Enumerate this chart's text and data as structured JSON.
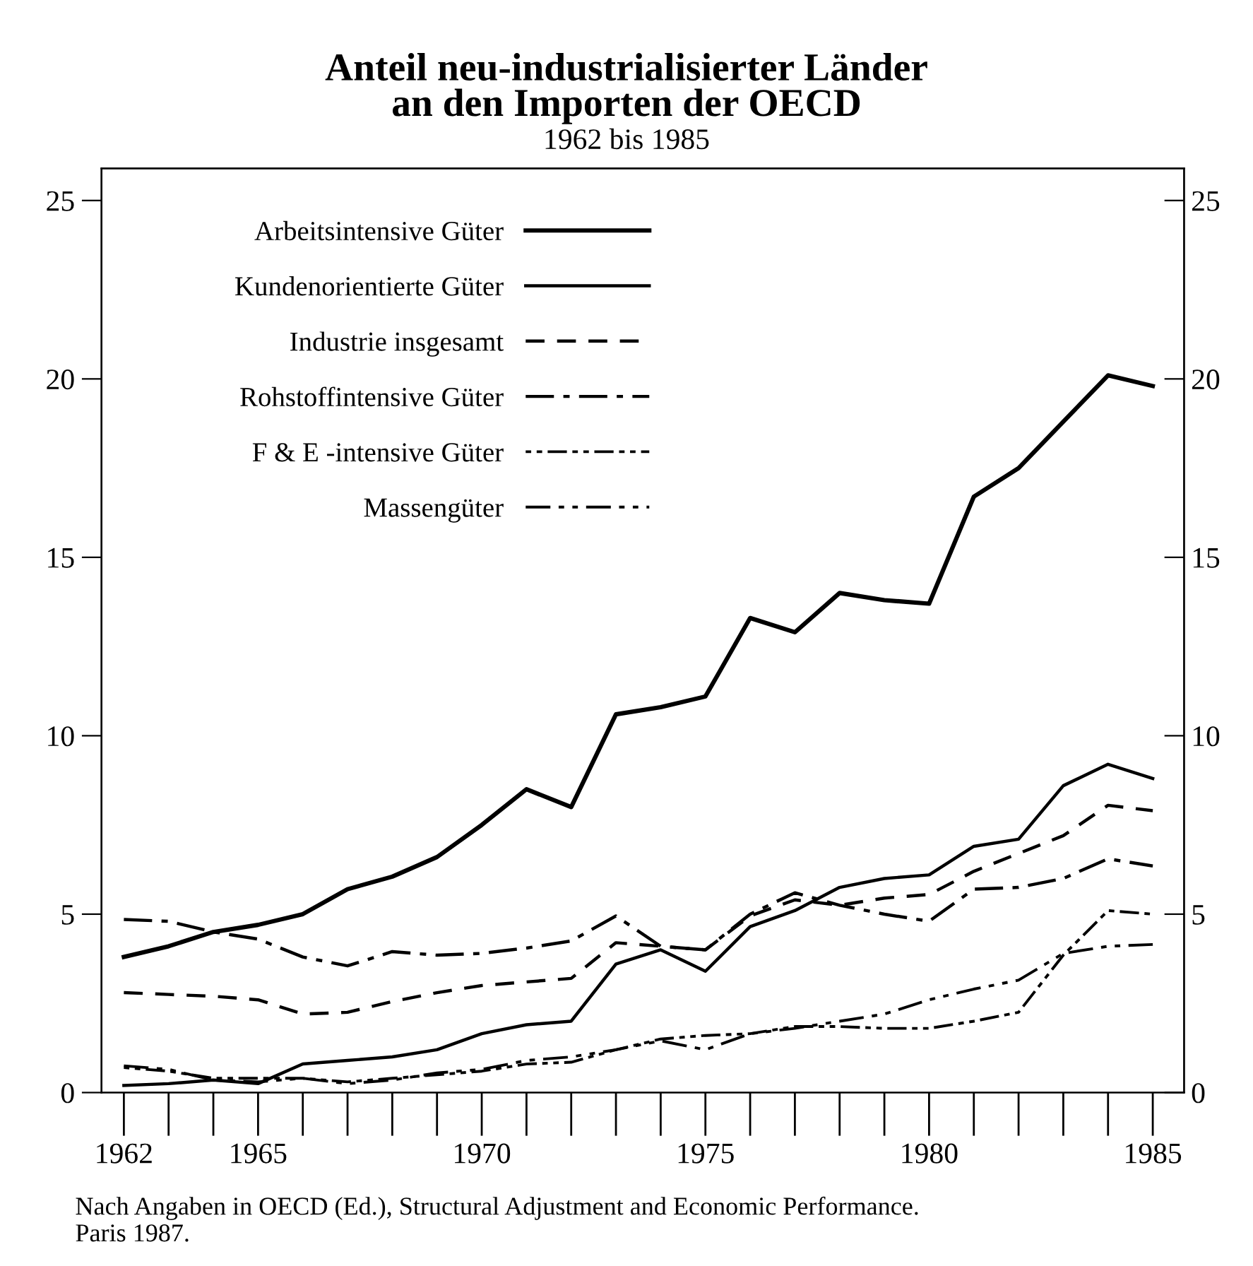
{
  "chart_data": {
    "type": "line",
    "title": "Anteil neu-industrialisierter Länder\nan den Importen der OECD",
    "subtitle": "1962 bis 1985",
    "annotations": [
      "Nach Angaben in OECD (Ed.), Structural Adjustment and Economic Performance.\nParis 1987."
    ],
    "x": [
      1962,
      1963,
      1964,
      1965,
      1966,
      1967,
      1968,
      1969,
      1970,
      1971,
      1972,
      1973,
      1974,
      1975,
      1976,
      1977,
      1978,
      1979,
      1980,
      1981,
      1982,
      1983,
      1984,
      1985
    ],
    "series": [
      {
        "name": "Arbeitsintensive Güter",
        "color": "#000000",
        "line_style": "solid",
        "values": [
          3.8,
          4.1,
          4.5,
          4.7,
          5.0,
          5.7,
          6.05,
          6.6,
          7.5,
          8.5,
          8.0,
          10.6,
          10.8,
          11.1,
          13.3,
          12.9,
          14.0,
          13.8,
          13.7,
          16.7,
          17.5,
          18.8,
          20.1,
          19.8
        ]
      },
      {
        "name": "Kundenorientierte Güter",
        "color": "#000000",
        "line_style": "solid",
        "values": [
          0.2,
          0.25,
          0.35,
          0.25,
          0.8,
          0.9,
          1.0,
          1.2,
          1.65,
          1.9,
          2.0,
          3.6,
          4.0,
          3.4,
          4.65,
          5.1,
          5.75,
          6.0,
          6.1,
          6.9,
          7.1,
          8.6,
          9.2,
          8.8
        ]
      },
      {
        "name": "Industrie insgesamt",
        "color": "#000000",
        "line_style": "dashed",
        "values": [
          2.8,
          2.75,
          2.7,
          2.6,
          2.2,
          2.25,
          2.55,
          2.8,
          3.0,
          3.1,
          3.2,
          4.2,
          4.1,
          4.0,
          4.95,
          5.4,
          5.25,
          5.45,
          5.55,
          6.2,
          6.7,
          7.2,
          8.05,
          7.9
        ]
      },
      {
        "name": "Rohstoffintensive Güter",
        "color": "#000000",
        "line_style": "dashdot",
        "values": [
          4.85,
          4.8,
          4.5,
          4.3,
          3.8,
          3.55,
          3.95,
          3.85,
          3.9,
          4.05,
          4.25,
          4.95,
          4.1,
          4.0,
          5.0,
          5.6,
          5.25,
          5.0,
          4.8,
          5.7,
          5.75,
          6.0,
          6.55,
          6.35
        ]
      },
      {
        "name": "F & E -intensive Güter",
        "color": "#000000",
        "line_style": "dashdotdot",
        "values": [
          0.7,
          0.6,
          0.4,
          0.4,
          0.4,
          0.3,
          0.4,
          0.5,
          0.6,
          0.8,
          0.85,
          1.2,
          1.5,
          1.6,
          1.65,
          1.85,
          1.85,
          1.8,
          1.8,
          2.0,
          2.25,
          3.85,
          5.1,
          5.0
        ]
      },
      {
        "name": "Massengüter",
        "color": "#000000",
        "line_style": "longdashdotdot",
        "values": [
          0.75,
          0.65,
          0.35,
          0.3,
          0.4,
          0.25,
          0.35,
          0.55,
          0.65,
          0.9,
          1.0,
          1.2,
          1.45,
          1.2,
          1.65,
          1.8,
          2.0,
          2.2,
          2.6,
          2.9,
          3.15,
          3.9,
          4.1,
          4.15
        ]
      }
    ],
    "xlim": [
      1961.5,
      1985.7
    ],
    "ylim": [
      0,
      25.9
    ],
    "y2lim": [
      0,
      25.9
    ],
    "xticks": [
      1962,
      1965,
      1970,
      1975,
      1980,
      1985
    ],
    "yticks": [
      0,
      5,
      10,
      15,
      20,
      25
    ],
    "y2ticks": [
      0,
      5,
      10,
      15,
      20,
      25
    ],
    "grid": false,
    "legend": "top left",
    "marker": "none"
  }
}
